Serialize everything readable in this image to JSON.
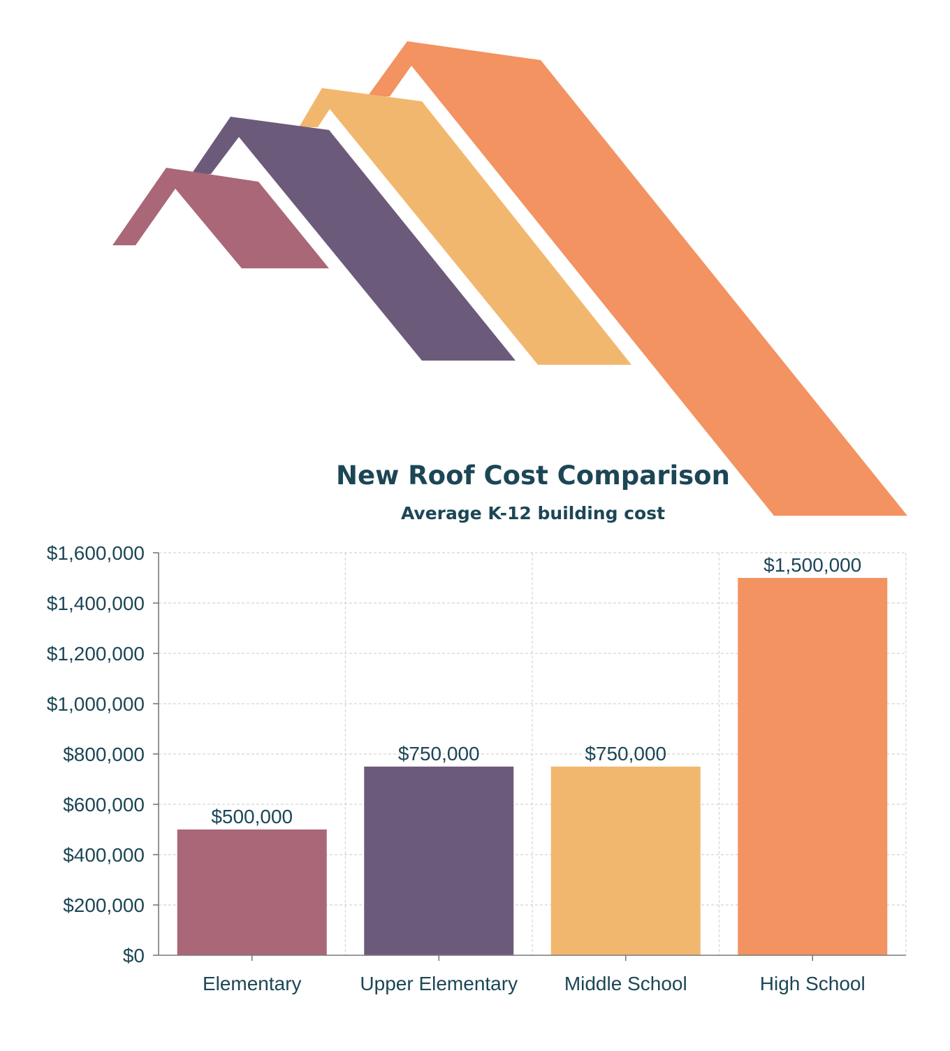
{
  "chart_data": {
    "type": "bar",
    "title": "New Roof Cost Comparison",
    "subtitle": "Average K-12 building cost",
    "categories": [
      "Elementary",
      "Upper Elementary",
      "Middle School",
      "High School"
    ],
    "values": [
      500000,
      750000,
      750000,
      1500000
    ],
    "value_labels": [
      "$500,000",
      "$750,000",
      "$750,000",
      "$1,500,000"
    ],
    "colors": [
      "#a96777",
      "#6c5a7b",
      "#f2b76e",
      "#f29361"
    ],
    "ylim": [
      0,
      1600000
    ],
    "yticks": [
      0,
      200000,
      400000,
      600000,
      800000,
      1000000,
      1200000,
      1400000,
      1600000
    ],
    "ytick_labels": [
      "$0",
      "$200,000",
      "$400,000",
      "$600,000",
      "$800,000",
      "$1,000,000",
      "$1,200,000",
      "$1,400,000",
      "$1,600,000"
    ],
    "grid": true,
    "xlabel": "",
    "ylabel": ""
  },
  "decoration": {
    "roof_icons": [
      "roof-elementary-icon",
      "roof-upper-elementary-icon",
      "roof-middle-school-icon",
      "roof-high-school-icon"
    ]
  }
}
